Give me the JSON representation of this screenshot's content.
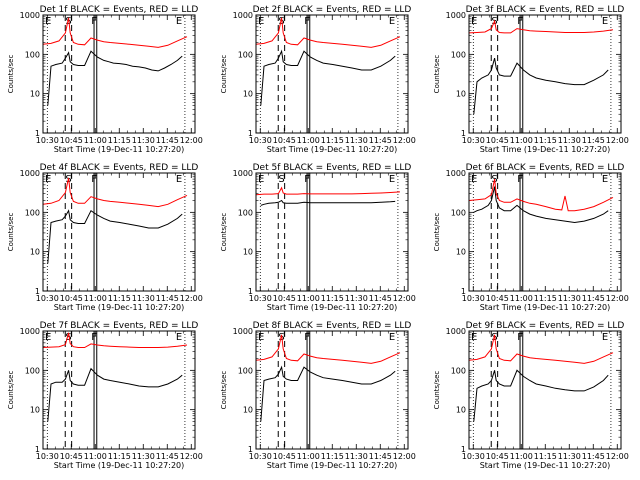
{
  "shared": {
    "title_suffix": "BLACK = Events, RED = LLD",
    "ylabel": "Counts/sec",
    "xlabel": "Start Time (19-Dec-11 10:27:20)",
    "x_ticks": [
      "10:30",
      "10:45",
      "11:00",
      "11:15",
      "11:30",
      "11:45",
      "12:00"
    ],
    "y_ticks": [
      "1",
      "10",
      "100",
      "1000"
    ],
    "markers": {
      "E": "E",
      "S": "S",
      "F": "F"
    },
    "colors": {
      "events": "#000000",
      "lld": "#ff0000"
    }
  },
  "chart_data": [
    {
      "type": "line",
      "title": "Det 1f",
      "xlim_min": [
        0,
        95
      ],
      "ylim": [
        1,
        1000
      ],
      "log_y": true,
      "series": [
        {
          "name": "BLACK = Events",
          "color": "#000000",
          "x": [
            3,
            5,
            8,
            12,
            14,
            16,
            17,
            19,
            22,
            26,
            30,
            34,
            38,
            41,
            44,
            48,
            52,
            56,
            60,
            64,
            68,
            72,
            76,
            80,
            84,
            87
          ],
          "y": [
            5,
            50,
            55,
            60,
            80,
            110,
            65,
            55,
            52,
            52,
            120,
            85,
            70,
            65,
            60,
            58,
            55,
            50,
            48,
            45,
            40,
            38,
            45,
            55,
            70,
            90
          ]
        },
        {
          "name": "RED = LLD",
          "color": "#ff0000",
          "x": [
            0,
            5,
            10,
            14,
            16,
            17,
            19,
            22,
            26,
            30,
            34,
            38,
            42,
            48,
            54,
            60,
            66,
            72,
            78,
            84,
            90
          ],
          "y": [
            180,
            190,
            220,
            350,
            850,
            350,
            200,
            180,
            175,
            260,
            230,
            210,
            200,
            190,
            180,
            170,
            160,
            150,
            170,
            220,
            280
          ]
        }
      ]
    },
    {
      "type": "line",
      "title": "Det 2f",
      "xlim_min": [
        0,
        95
      ],
      "ylim": [
        1,
        1000
      ],
      "log_y": true,
      "series": [
        {
          "name": "BLACK = Events",
          "color": "#000000",
          "x": [
            3,
            5,
            8,
            12,
            14,
            16,
            17,
            19,
            22,
            26,
            30,
            34,
            38,
            42,
            48,
            54,
            60,
            66,
            72,
            78,
            84,
            87
          ],
          "y": [
            5,
            50,
            55,
            60,
            80,
            120,
            65,
            55,
            52,
            52,
            120,
            85,
            70,
            60,
            55,
            50,
            45,
            40,
            40,
            50,
            70,
            90
          ]
        },
        {
          "name": "RED = LLD",
          "color": "#ff0000",
          "x": [
            0,
            5,
            10,
            14,
            16,
            17,
            19,
            22,
            26,
            30,
            34,
            38,
            42,
            48,
            54,
            60,
            66,
            72,
            78,
            84,
            90
          ],
          "y": [
            180,
            190,
            220,
            350,
            850,
            350,
            200,
            180,
            175,
            260,
            230,
            210,
            200,
            190,
            180,
            170,
            160,
            150,
            170,
            220,
            280
          ]
        }
      ]
    },
    {
      "type": "line",
      "title": "Det 3f",
      "xlim_min": [
        0,
        95
      ],
      "ylim": [
        1,
        1000
      ],
      "log_y": true,
      "series": [
        {
          "name": "BLACK = Events",
          "color": "#000000",
          "x": [
            3,
            5,
            8,
            12,
            14,
            16,
            17,
            19,
            22,
            26,
            30,
            34,
            38,
            42,
            48,
            54,
            60,
            66,
            72,
            78,
            84,
            87
          ],
          "y": [
            3,
            20,
            25,
            30,
            40,
            80,
            45,
            30,
            28,
            28,
            60,
            40,
            30,
            25,
            22,
            20,
            18,
            17,
            17,
            22,
            30,
            40
          ]
        },
        {
          "name": "RED = LLD",
          "color": "#ff0000",
          "x": [
            0,
            5,
            10,
            14,
            16,
            17,
            19,
            22,
            26,
            30,
            34,
            38,
            42,
            48,
            54,
            60,
            66,
            72,
            78,
            84,
            90
          ],
          "y": [
            350,
            360,
            370,
            450,
            700,
            420,
            360,
            350,
            350,
            450,
            420,
            400,
            390,
            380,
            370,
            360,
            360,
            360,
            370,
            390,
            420
          ]
        }
      ]
    },
    {
      "type": "line",
      "title": "Det 4f",
      "xlim_min": [
        0,
        95
      ],
      "ylim": [
        1,
        1000
      ],
      "log_y": true,
      "series": [
        {
          "name": "BLACK = Events",
          "color": "#000000",
          "x": [
            3,
            5,
            8,
            12,
            14,
            16,
            17,
            19,
            22,
            26,
            30,
            34,
            38,
            42,
            48,
            54,
            60,
            66,
            72,
            78,
            84,
            87
          ],
          "y": [
            5,
            55,
            60,
            65,
            80,
            110,
            65,
            55,
            52,
            52,
            110,
            85,
            70,
            60,
            55,
            50,
            45,
            40,
            40,
            50,
            70,
            90
          ]
        },
        {
          "name": "RED = LLD",
          "color": "#ff0000",
          "x": [
            0,
            5,
            10,
            14,
            16,
            17,
            19,
            22,
            26,
            30,
            34,
            38,
            42,
            48,
            54,
            60,
            66,
            72,
            78,
            84,
            90
          ],
          "y": [
            160,
            170,
            200,
            320,
            750,
            320,
            190,
            170,
            170,
            250,
            220,
            200,
            190,
            180,
            170,
            160,
            150,
            140,
            160,
            210,
            270
          ]
        }
      ]
    },
    {
      "type": "line",
      "title": "Det 5f",
      "xlim_min": [
        0,
        95
      ],
      "ylim": [
        1,
        1000
      ],
      "log_y": true,
      "series": [
        {
          "name": "BLACK = Events",
          "color": "#000000",
          "x": [
            3,
            5,
            8,
            12,
            14,
            16,
            17,
            19,
            22,
            26,
            30,
            34,
            38,
            42,
            48,
            54,
            60,
            66,
            72,
            78,
            84,
            87
          ],
          "y": [
            150,
            160,
            170,
            175,
            180,
            200,
            175,
            170,
            170,
            170,
            180,
            175,
            175,
            175,
            175,
            175,
            175,
            175,
            175,
            180,
            185,
            190
          ]
        },
        {
          "name": "RED = LLD",
          "color": "#ff0000",
          "x": [
            0,
            5,
            10,
            14,
            16,
            17,
            19,
            22,
            26,
            30,
            34,
            38,
            42,
            48,
            54,
            60,
            66,
            72,
            78,
            84,
            90
          ],
          "y": [
            280,
            290,
            290,
            300,
            420,
            310,
            290,
            290,
            290,
            300,
            295,
            295,
            295,
            295,
            295,
            295,
            300,
            305,
            310,
            320,
            330
          ]
        }
      ]
    },
    {
      "type": "line",
      "title": "Det 6f",
      "xlim_min": [
        0,
        95
      ],
      "ylim": [
        1,
        1000
      ],
      "log_y": true,
      "series": [
        {
          "name": "BLACK = Events",
          "color": "#000000",
          "x": [
            3,
            5,
            8,
            12,
            14,
            16,
            17,
            19,
            22,
            26,
            30,
            34,
            38,
            42,
            48,
            54,
            60,
            66,
            72,
            78,
            84,
            87
          ],
          "y": [
            100,
            110,
            120,
            150,
            200,
            450,
            200,
            130,
            110,
            110,
            150,
            110,
            90,
            80,
            70,
            65,
            60,
            55,
            60,
            70,
            90,
            110
          ]
        },
        {
          "name": "RED = LLD",
          "color": "#ff0000",
          "x": [
            0,
            5,
            10,
            14,
            16,
            17,
            19,
            22,
            26,
            30,
            34,
            38,
            42,
            48,
            54,
            58,
            60,
            62,
            66,
            72,
            78,
            84,
            90
          ],
          "y": [
            200,
            210,
            220,
            280,
            700,
            300,
            200,
            180,
            180,
            220,
            190,
            170,
            160,
            140,
            120,
            115,
            260,
            110,
            110,
            120,
            140,
            180,
            240
          ]
        }
      ]
    },
    {
      "type": "line",
      "title": "Det 7f",
      "xlim_min": [
        0,
        95
      ],
      "ylim": [
        1,
        1000
      ],
      "log_y": true,
      "series": [
        {
          "name": "BLACK = Events",
          "color": "#000000",
          "x": [
            3,
            5,
            8,
            12,
            14,
            16,
            17,
            19,
            22,
            26,
            30,
            34,
            38,
            42,
            48,
            54,
            60,
            66,
            72,
            78,
            84,
            87
          ],
          "y": [
            5,
            45,
            50,
            50,
            60,
            100,
            55,
            45,
            42,
            42,
            110,
            75,
            60,
            55,
            50,
            45,
            40,
            38,
            38,
            45,
            60,
            75
          ]
        },
        {
          "name": "RED = LLD",
          "color": "#ff0000",
          "x": [
            0,
            5,
            10,
            14,
            16,
            17,
            19,
            22,
            26,
            30,
            34,
            38,
            42,
            48,
            54,
            60,
            66,
            72,
            78,
            84,
            90
          ],
          "y": [
            380,
            390,
            400,
            450,
            900,
            480,
            400,
            380,
            380,
            470,
            440,
            420,
            410,
            400,
            390,
            380,
            380,
            380,
            390,
            410,
            440
          ]
        }
      ]
    },
    {
      "type": "line",
      "title": "Det 8f",
      "xlim_min": [
        0,
        95
      ],
      "ylim": [
        1,
        1000
      ],
      "log_y": true,
      "series": [
        {
          "name": "BLACK = Events",
          "color": "#000000",
          "x": [
            3,
            5,
            8,
            12,
            14,
            16,
            17,
            19,
            22,
            26,
            30,
            34,
            38,
            42,
            48,
            54,
            60,
            66,
            72,
            78,
            84,
            87
          ],
          "y": [
            5,
            55,
            60,
            65,
            80,
            120,
            70,
            60,
            55,
            55,
            120,
            90,
            75,
            65,
            60,
            55,
            50,
            45,
            45,
            55,
            75,
            95
          ]
        },
        {
          "name": "RED = LLD",
          "color": "#ff0000",
          "x": [
            0,
            5,
            10,
            14,
            16,
            17,
            19,
            22,
            26,
            30,
            34,
            38,
            42,
            48,
            54,
            60,
            66,
            72,
            78,
            84,
            90
          ],
          "y": [
            180,
            190,
            220,
            350,
            800,
            350,
            200,
            180,
            175,
            260,
            230,
            210,
            200,
            190,
            180,
            170,
            160,
            150,
            170,
            220,
            280
          ]
        }
      ]
    },
    {
      "type": "line",
      "title": "Det 9f",
      "xlim_min": [
        0,
        95
      ],
      "ylim": [
        1,
        1000
      ],
      "log_y": true,
      "series": [
        {
          "name": "BLACK = Events",
          "color": "#000000",
          "x": [
            3,
            5,
            8,
            12,
            14,
            16,
            17,
            19,
            22,
            26,
            30,
            34,
            38,
            42,
            48,
            54,
            60,
            66,
            72,
            78,
            84,
            87
          ],
          "y": [
            5,
            35,
            40,
            45,
            55,
            100,
            55,
            45,
            40,
            40,
            100,
            70,
            55,
            45,
            40,
            35,
            32,
            30,
            30,
            38,
            55,
            75
          ]
        },
        {
          "name": "RED = LLD",
          "color": "#ff0000",
          "x": [
            0,
            5,
            10,
            14,
            16,
            17,
            19,
            22,
            26,
            30,
            34,
            38,
            42,
            48,
            54,
            60,
            66,
            72,
            78,
            84,
            90
          ],
          "y": [
            180,
            190,
            220,
            350,
            800,
            350,
            200,
            180,
            175,
            260,
            230,
            210,
            200,
            190,
            180,
            170,
            160,
            150,
            170,
            220,
            280
          ]
        }
      ]
    }
  ],
  "markers_x": {
    "dotted": [
      2.7,
      88.7
    ],
    "dashed": [
      13.9,
      17.9
    ],
    "solid": [
      31.9,
      33.6
    ]
  }
}
